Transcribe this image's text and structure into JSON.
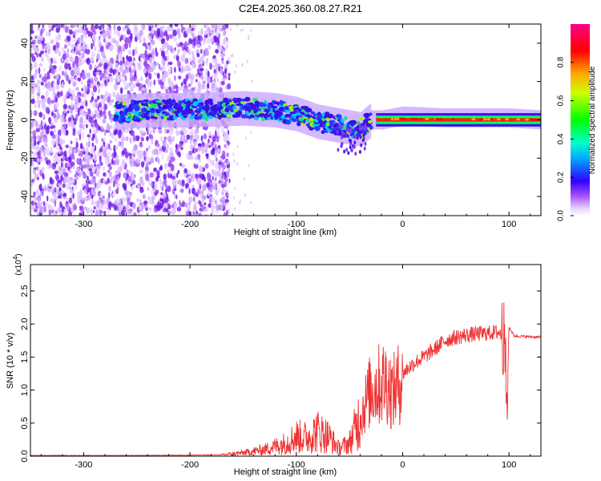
{
  "title": "C2E4.2025.360.08.27.R21",
  "chart_data": [
    {
      "type": "heatmap",
      "name": "spectrogram",
      "xlabel": "Height of straight line (km)",
      "ylabel": "Frequency (Hz)",
      "xlim": [
        -350,
        130
      ],
      "ylim": [
        -50,
        50
      ],
      "xticks": [
        -300,
        -200,
        -100,
        0,
        100
      ],
      "yticks": [
        -40,
        -20,
        0,
        20,
        40
      ],
      "noise_region_x": [
        -350,
        -163
      ],
      "signal_start_x": -270,
      "trace_center_hz": [
        [
          -270,
          4
        ],
        [
          -240,
          5
        ],
        [
          -200,
          5
        ],
        [
          -150,
          6
        ],
        [
          -120,
          5
        ],
        [
          -100,
          3
        ],
        [
          -80,
          -1
        ],
        [
          -60,
          -3
        ],
        [
          -40,
          -5
        ],
        [
          -30,
          0
        ],
        [
          -20,
          0
        ],
        [
          0,
          2
        ],
        [
          40,
          1
        ],
        [
          100,
          1
        ],
        [
          130,
          0
        ]
      ],
      "colorbar": {
        "label": "Normalized spectral amplitude",
        "range": [
          0.0,
          1.0
        ],
        "ticks": [
          "0.0",
          "0.2",
          "0.4",
          "0.6",
          "0.8"
        ]
      }
    },
    {
      "type": "line",
      "name": "snr",
      "xlabel": "Height of straight line (km)",
      "ylabel": "SNR (10 * v/v)",
      "exponent_label": "(x10",
      "exponent_power": "4",
      "exponent_close": ")",
      "xlim": [
        -350,
        130
      ],
      "ylim": [
        0.0,
        2.9
      ],
      "xticks": [
        -300,
        -200,
        -100,
        0,
        100
      ],
      "yticks": [
        "0.0",
        "0.5",
        "1.0",
        "1.5",
        "2.0",
        "2.5"
      ],
      "line_color": "#ee3333",
      "series": [
        {
          "name": "SNR",
          "x": [
            -350,
            -250,
            -170,
            -150,
            -130,
            -110,
            -100,
            -90,
            -80,
            -70,
            -60,
            -50,
            -45,
            -40,
            -35,
            -30,
            -25,
            -20,
            -15,
            -10,
            -5,
            0,
            10,
            20,
            30,
            40,
            50,
            60,
            70,
            80,
            90,
            95,
            97,
            98,
            100,
            105,
            115,
            130
          ],
          "y": [
            0.01,
            0.01,
            0.02,
            0.05,
            0.1,
            0.2,
            0.3,
            0.28,
            0.38,
            0.3,
            0.12,
            0.2,
            0.4,
            0.6,
            0.8,
            1.0,
            1.05,
            1.1,
            1.15,
            0.95,
            1.05,
            1.25,
            1.4,
            1.5,
            1.62,
            1.75,
            1.8,
            1.83,
            1.85,
            1.86,
            1.88,
            1.8,
            1.2,
            0.7,
            1.95,
            1.82,
            1.81,
            1.8
          ]
        }
      ]
    }
  ]
}
